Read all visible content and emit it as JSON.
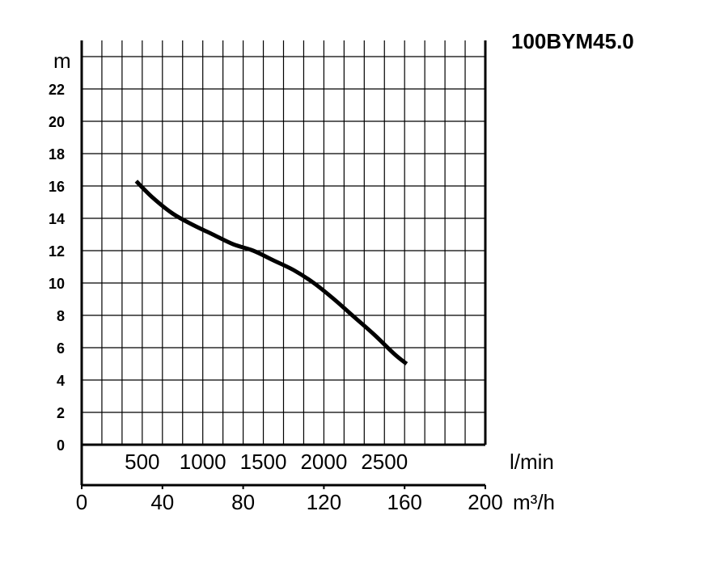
{
  "chart_data": {
    "type": "line",
    "title": "100BYM45.0",
    "ylabel": "m",
    "xlabel_lmin": "l/min",
    "xlabel_m3h": "m³/h",
    "ylim": [
      0,
      24
    ],
    "xlim": [
      0,
      200
    ],
    "y_ticks": [
      "0",
      "2",
      "4",
      "6",
      "8",
      "10",
      "12",
      "14",
      "16",
      "18",
      "20",
      "22"
    ],
    "x_ticks_m3h": [
      "0",
      "40",
      "80",
      "120",
      "160",
      "200"
    ],
    "x_ticks_lmin": [
      "500",
      "1000",
      "1500",
      "2000",
      "2500"
    ],
    "grid": true,
    "series": [
      {
        "x": [
          27,
          35,
          45,
          55,
          65,
          75,
          85,
          95,
          105,
          115,
          125,
          135,
          145,
          155,
          161
        ],
        "y": [
          16.3,
          15.3,
          14.3,
          13.6,
          13.0,
          12.4,
          12.0,
          11.4,
          10.8,
          10.0,
          9.0,
          7.9,
          6.8,
          5.6,
          5.0
        ]
      }
    ]
  }
}
